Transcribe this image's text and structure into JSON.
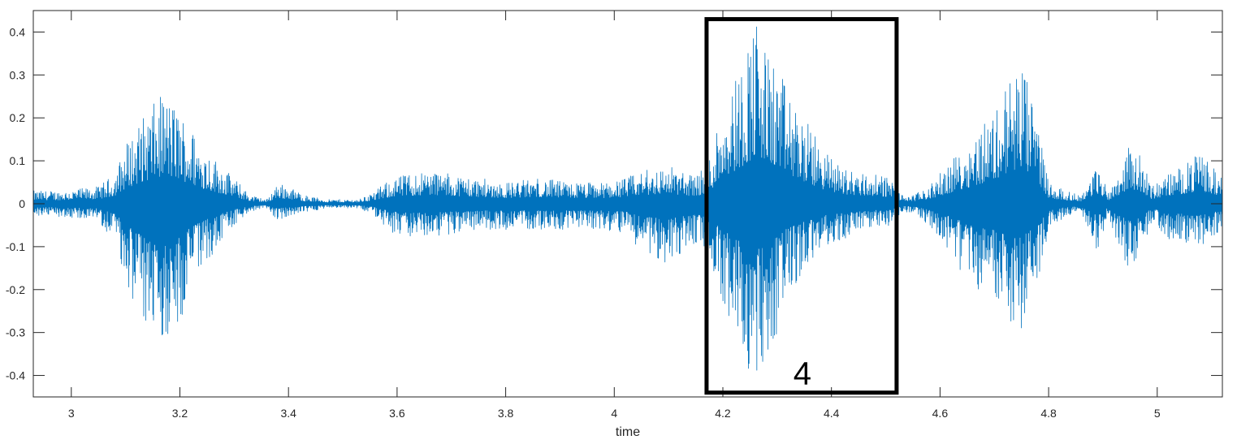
{
  "chart_data": {
    "type": "line",
    "title": "",
    "xlabel": "time",
    "ylabel": "",
    "xlim": [
      2.93,
      5.12
    ],
    "ylim": [
      -0.45,
      0.45
    ],
    "x_ticks": [
      3,
      3.2,
      3.4,
      3.6,
      3.8,
      4,
      4.2,
      4.4,
      4.6,
      4.8,
      5
    ],
    "x_tick_labels": [
      "3",
      "3.2",
      "3.4",
      "3.6",
      "3.8",
      "4",
      "4.2",
      "4.4",
      "4.6",
      "4.8",
      "5"
    ],
    "y_ticks": [
      0.4,
      0.3,
      0.2,
      0.1,
      0,
      -0.1,
      -0.2,
      -0.3,
      -0.4
    ],
    "y_tick_labels": [
      "0.4",
      "0.3",
      "0.2",
      "0.1",
      "0",
      "-0.1",
      "-0.2",
      "-0.3",
      "-0.4"
    ],
    "grid": false,
    "series": [
      {
        "color": "#0072BD",
        "envelope": {
          "x": [
            2.93,
            2.98,
            3.05,
            3.08,
            3.1,
            3.13,
            3.17,
            3.2,
            3.24,
            3.27,
            3.3,
            3.33,
            3.36,
            3.38,
            3.4,
            3.43,
            3.47,
            3.5,
            3.53,
            3.56,
            3.59,
            3.62,
            3.66,
            3.7,
            3.75,
            3.8,
            3.86,
            3.92,
            3.98,
            4.02,
            4.06,
            4.1,
            4.14,
            4.17,
            4.2,
            4.23,
            4.26,
            4.28,
            4.3,
            4.32,
            4.35,
            4.39,
            4.43,
            4.47,
            4.51,
            4.53,
            4.55,
            4.58,
            4.62,
            4.66,
            4.7,
            4.73,
            4.75,
            4.78,
            4.8,
            4.83,
            4.86,
            4.89,
            4.91,
            4.93,
            4.95,
            4.97,
            4.99,
            5.02,
            5.05,
            5.08,
            5.12
          ],
          "upper": [
            0.03,
            0.03,
            0.04,
            0.07,
            0.14,
            0.2,
            0.26,
            0.22,
            0.14,
            0.1,
            0.06,
            0.02,
            0.01,
            0.05,
            0.04,
            0.02,
            0.01,
            0.01,
            0.01,
            0.03,
            0.06,
            0.07,
            0.08,
            0.07,
            0.06,
            0.05,
            0.06,
            0.05,
            0.05,
            0.06,
            0.08,
            0.09,
            0.07,
            0.08,
            0.25,
            0.32,
            0.44,
            0.36,
            0.33,
            0.26,
            0.2,
            0.12,
            0.08,
            0.07,
            0.06,
            0.02,
            0.02,
            0.04,
            0.1,
            0.16,
            0.22,
            0.3,
            0.33,
            0.2,
            0.05,
            0.03,
            0.02,
            0.09,
            0.03,
            0.08,
            0.14,
            0.11,
            0.04,
            0.07,
            0.09,
            0.12,
            0.06
          ],
          "lower": [
            -0.03,
            -0.03,
            -0.04,
            -0.09,
            -0.18,
            -0.3,
            -0.32,
            -0.28,
            -0.16,
            -0.1,
            -0.05,
            -0.02,
            -0.01,
            -0.04,
            -0.03,
            -0.02,
            -0.01,
            -0.01,
            -0.01,
            -0.03,
            -0.07,
            -0.08,
            -0.08,
            -0.07,
            -0.06,
            -0.06,
            -0.06,
            -0.06,
            -0.06,
            -0.07,
            -0.12,
            -0.14,
            -0.1,
            -0.1,
            -0.24,
            -0.33,
            -0.43,
            -0.36,
            -0.3,
            -0.22,
            -0.16,
            -0.1,
            -0.08,
            -0.06,
            -0.05,
            -0.02,
            -0.02,
            -0.05,
            -0.12,
            -0.2,
            -0.24,
            -0.28,
            -0.29,
            -0.2,
            -0.06,
            -0.03,
            -0.02,
            -0.11,
            -0.03,
            -0.1,
            -0.16,
            -0.12,
            -0.04,
            -0.09,
            -0.09,
            -0.1,
            -0.06
          ]
        }
      }
    ],
    "annotations": [
      {
        "type": "rectangle",
        "x0": 4.17,
        "x1": 4.52,
        "y0": -0.44,
        "y1": 0.43,
        "label": "4"
      }
    ]
  }
}
